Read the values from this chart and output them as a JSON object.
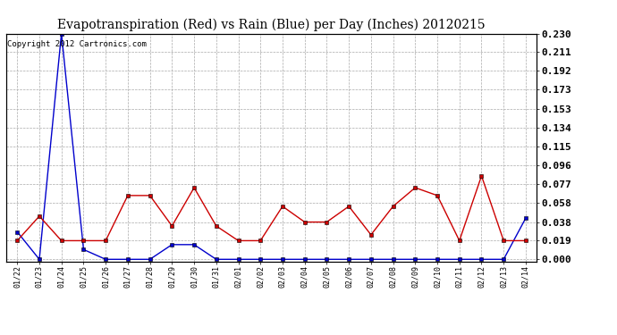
{
  "title": "Evapotranspiration (Red) vs Rain (Blue) per Day (Inches) 20120215",
  "copyright": "Copyright 2012 Cartronics.com",
  "x_labels": [
    "01/22",
    "01/23",
    "01/24",
    "01/25",
    "01/26",
    "01/27",
    "01/28",
    "01/29",
    "01/30",
    "01/31",
    "02/01",
    "02/02",
    "02/03",
    "02/04",
    "02/05",
    "02/06",
    "02/07",
    "02/08",
    "02/09",
    "02/10",
    "02/11",
    "02/12",
    "02/13",
    "02/14"
  ],
  "red_values": [
    0.019,
    0.044,
    0.019,
    0.019,
    0.019,
    0.065,
    0.065,
    0.034,
    0.073,
    0.034,
    0.019,
    0.019,
    0.054,
    0.038,
    0.038,
    0.054,
    0.025,
    0.054,
    0.073,
    0.065,
    0.019,
    0.085,
    0.019,
    0.019
  ],
  "blue_values": [
    0.028,
    0.0,
    0.23,
    0.01,
    0.0,
    0.0,
    0.0,
    0.015,
    0.015,
    0.0,
    0.0,
    0.0,
    0.0,
    0.0,
    0.0,
    0.0,
    0.0,
    0.0,
    0.0,
    0.0,
    0.0,
    0.0,
    0.0,
    0.042
  ],
  "y_ticks": [
    0.0,
    0.019,
    0.038,
    0.058,
    0.077,
    0.096,
    0.115,
    0.134,
    0.153,
    0.173,
    0.192,
    0.211,
    0.23
  ],
  "ylim": [
    -0.002,
    0.23
  ],
  "red_color": "#cc0000",
  "blue_color": "#0000cc",
  "grid_color": "#aaaaaa",
  "bg_color": "#ffffff",
  "title_fontsize": 10,
  "copyright_fontsize": 6.5,
  "tick_label_fontsize": 8
}
